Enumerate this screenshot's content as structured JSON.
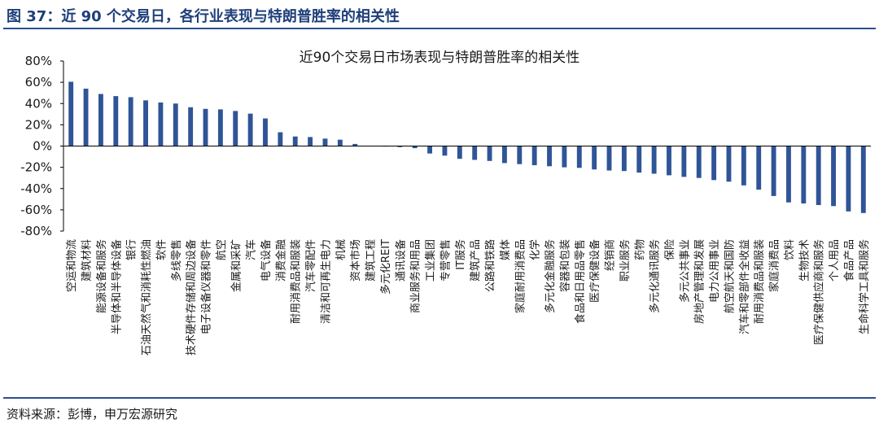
{
  "figure": {
    "title": "图 37：近 90 个交易日，各行业表现与特朗普胜率的相关性",
    "source": "资料来源：彭博，申万宏源研究"
  },
  "chart_data": {
    "type": "bar",
    "title": "近90个交易日市场表现与特朗普胜率的相关性",
    "xlabel": "",
    "ylabel": "",
    "ylim": [
      -80,
      80
    ],
    "yticks": [
      -80,
      -60,
      -40,
      -20,
      0,
      20,
      40,
      60,
      80
    ],
    "y_tick_format": "percent",
    "grid": false,
    "legend": "none",
    "bar_color": "#2f5597",
    "categories": [
      "空运和物流",
      "建筑材料",
      "能源设备和服务",
      "半导体和半导体设备",
      "银行",
      "石油天然气和消耗性燃油",
      "软件",
      "多线零售",
      "技术硬件存储和周边设备",
      "电子设备仪器和零件",
      "航空",
      "金属和采矿",
      "汽车",
      "电气设备",
      "消费金融",
      "耐用消费品和服装",
      "汽车零配件",
      "清洁和可再生电力",
      "机械",
      "资本市场",
      "建筑工程",
      "多元化REIT",
      "通讯设备",
      "商业服务和用品",
      "工业集团",
      "专营零售",
      "IT服务",
      "建筑产品",
      "公路和铁路",
      "媒体",
      "家庭耐用消费品",
      "化学",
      "多元化金融服务",
      "容器和包装",
      "食品和日用品零售",
      "医疗保健设备",
      "经销商",
      "职业服务",
      "药物",
      "多元化通讯服务",
      "保险",
      "多元公共事业",
      "房地产管理和发展",
      "电力公用事业",
      "航空航天和国防",
      "汽车和零部件全收益",
      "耐用消费品和服装",
      "家庭消费品",
      "饮料",
      "生物技术",
      "医疗保健供应商和服务",
      "个人用品",
      "食品产品",
      "生命科学工具和服务"
    ],
    "values": [
      60.5,
      54,
      49,
      47,
      46,
      43,
      41,
      40,
      36.5,
      35,
      34.5,
      33,
      30.5,
      26,
      13,
      9,
      8.5,
      7,
      6,
      2,
      0,
      -0.5,
      -1,
      -2,
      -7,
      -9,
      -12,
      -13,
      -14,
      -16,
      -17,
      -18,
      -19,
      -20,
      -20.5,
      -22,
      -23,
      -23.5,
      -25,
      -26,
      -27.5,
      -29,
      -30,
      -32,
      -33.5,
      -37,
      -41,
      -47,
      -53,
      -54,
      -55.5,
      -56.5,
      -61.5,
      -63
    ]
  }
}
